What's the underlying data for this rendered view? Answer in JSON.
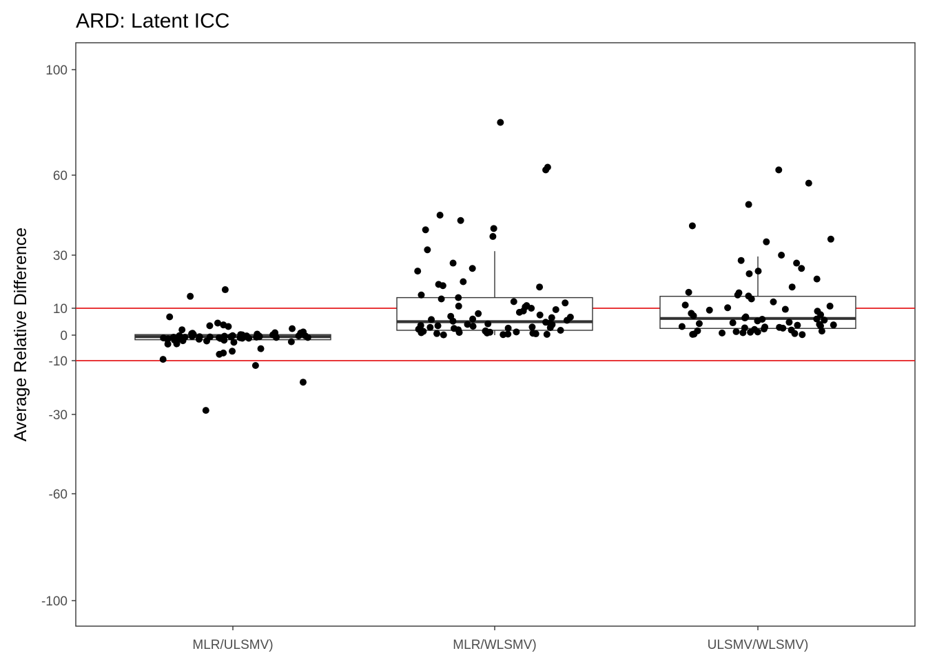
{
  "chart_data": {
    "type": "box",
    "title": "ARD: Latent ICC",
    "xlabel": "",
    "ylabel": "Average Relative Difference",
    "ylim": [
      -110,
      110
    ],
    "yticks": [
      -100,
      -60,
      -30,
      -10,
      0,
      10,
      30,
      60,
      100
    ],
    "grid": false,
    "reference_lines": [
      {
        "y": 10,
        "color": "#e41a1c"
      },
      {
        "y": -10,
        "color": "#e41a1c"
      }
    ],
    "categories": [
      "MLR/ULSMV)",
      "MLR/WLSMV)",
      "ULSMV/WLSMV)"
    ],
    "boxes": [
      {
        "category": "MLR/ULSMV)",
        "q1": -1.8,
        "median": -0.6,
        "q3": 0.2,
        "whisker_low": -3.0,
        "whisker_high": 0.5
      },
      {
        "category": "MLR/WLSMV)",
        "q1": 1.8,
        "median": 5.0,
        "q3": 14.0,
        "whisker_low": 0.0,
        "whisker_high": 31.5
      },
      {
        "category": "ULSMV/WLSMV)",
        "q1": 2.5,
        "median": 6.2,
        "q3": 14.5,
        "whisker_low": 0.0,
        "whisker_high": 29.5
      }
    ],
    "points": [
      [
        -0.5,
        -1.2,
        -0.8,
        0.3,
        -2.0,
        -2.8,
        -3.5,
        -2.6,
        -0.3,
        -1.0,
        -0.6,
        -0.9,
        0.4,
        -1.7,
        -0.2,
        0.6,
        -0.4,
        -1.5,
        0.1,
        -0.7,
        -2.2,
        -1.1,
        0.8,
        -0.3,
        -1.9,
        -0.5,
        1.2,
        -0.8,
        -1.3,
        0.2,
        -0.6,
        -1.6,
        2.0,
        -0.9,
        -0.4,
        0.5,
        -1.0,
        -2.3,
        -0.2,
        0.9,
        -0.7,
        3.5,
        -1.4,
        -0.3,
        0.7,
        2.4,
        3.2,
        -0.5,
        -1.2,
        4.5,
        0.1,
        -0.8,
        -3.4,
        14.5,
        17.0,
        6.8,
        -9.5,
        -7.5,
        -5.3,
        -11.8,
        -18.0,
        -28.5,
        -7.0,
        -6.3,
        3.8
      ],
      [
        0.3,
        0.8,
        1.5,
        2.0,
        2.5,
        3.0,
        3.5,
        1.0,
        0.5,
        4.5,
        5.5,
        1.8,
        2.8,
        0.7,
        1.2,
        0.2,
        0.9,
        4.0,
        6.0,
        7.0,
        8.0,
        9.0,
        10.0,
        10.8,
        12.0,
        2.2,
        3.3,
        0.4,
        1.6,
        5.8,
        6.7,
        4.2,
        3.9,
        2.6,
        1.1,
        0.6,
        7.5,
        9.5,
        14.0,
        15.0,
        13.5,
        11.0,
        10.5,
        8.5,
        6.5,
        5.2,
        4.8,
        0.1,
        1.4,
        2.9,
        3.6,
        80.0,
        62.0,
        63.0,
        45.0,
        40.0,
        39.5,
        43.0,
        37.0,
        32.0,
        25.0,
        27.0,
        20.0,
        18.0,
        19.0,
        18.5,
        24.0,
        12.5
      ],
      [
        0.4,
        0.9,
        1.6,
        2.1,
        2.7,
        3.2,
        3.7,
        1.1,
        0.6,
        4.6,
        5.6,
        1.9,
        2.9,
        0.8,
        1.3,
        0.3,
        6.0,
        7.2,
        8.1,
        9.3,
        10.2,
        11.2,
        12.4,
        14.6,
        15.8,
        2.3,
        3.4,
        5.9,
        6.8,
        4.3,
        4.0,
        2.6,
        1.2,
        7.6,
        9.6,
        13.5,
        10.8,
        8.9,
        6.4,
        5.3,
        4.8,
        0.2,
        1.5,
        3.0,
        3.8,
        62.0,
        57.0,
        49.0,
        41.0,
        36.0,
        35.0,
        30.0,
        28.0,
        27.0,
        25.0,
        24.0,
        23.0,
        21.0,
        18.0,
        16.0,
        15.0
      ]
    ]
  }
}
